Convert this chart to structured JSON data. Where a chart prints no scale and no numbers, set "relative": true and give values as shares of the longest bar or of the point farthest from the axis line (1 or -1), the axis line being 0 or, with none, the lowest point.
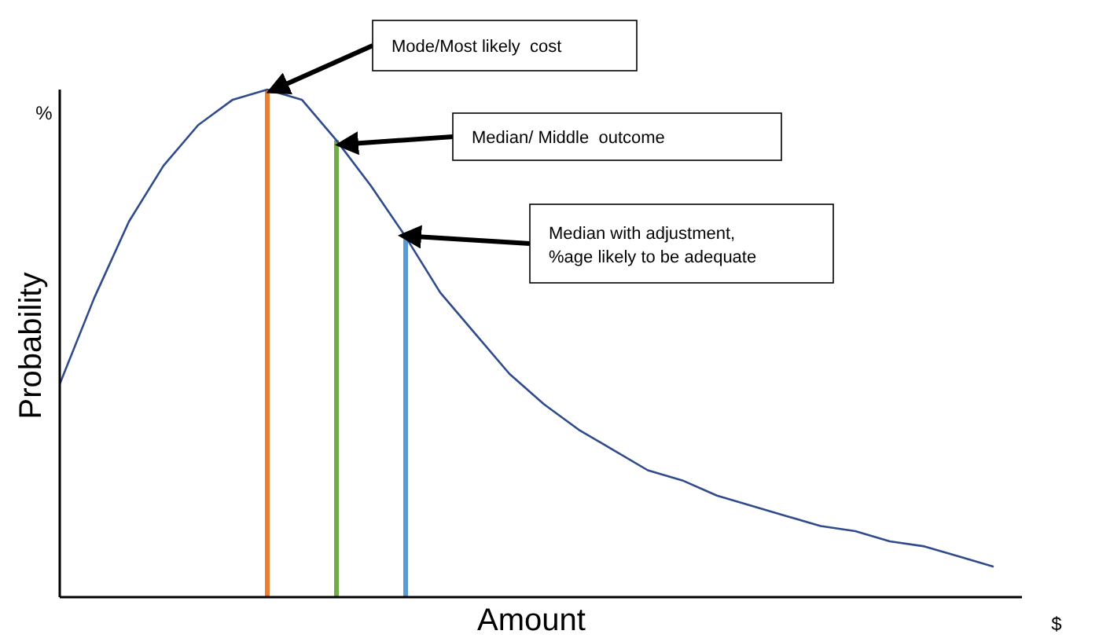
{
  "chart_data": {
    "type": "line",
    "relative": true,
    "xlabel": "Amount",
    "ylabel": "Probability",
    "grid": false,
    "tick_labels": false,
    "marker": "none",
    "line_style": "solid",
    "categories": [
      null,
      null,
      null,
      null,
      null,
      null,
      null,
      null,
      null,
      null,
      null,
      null,
      null,
      null,
      null,
      null,
      null,
      null,
      null,
      null,
      null,
      null,
      null,
      null,
      null,
      null,
      null,
      null
    ],
    "series": [
      {
        "color": "#2f4b8c",
        "values": [
          0.42,
          0.59,
          0.74,
          0.85,
          0.93,
          0.98,
          1.0,
          0.98,
          0.9,
          0.81,
          0.71,
          0.6,
          0.52,
          0.44,
          0.38,
          0.33,
          0.29,
          0.25,
          0.23,
          0.2,
          0.18,
          0.16,
          0.14,
          0.13,
          0.11,
          0.1,
          0.08,
          0.06
        ]
      }
    ],
    "annotations": [
      "Mode/Most likely  cost",
      "Median/ Middle  outcome",
      "Median with adjustment,\n%age likely to be adequate",
      "%",
      "$"
    ]
  }
}
